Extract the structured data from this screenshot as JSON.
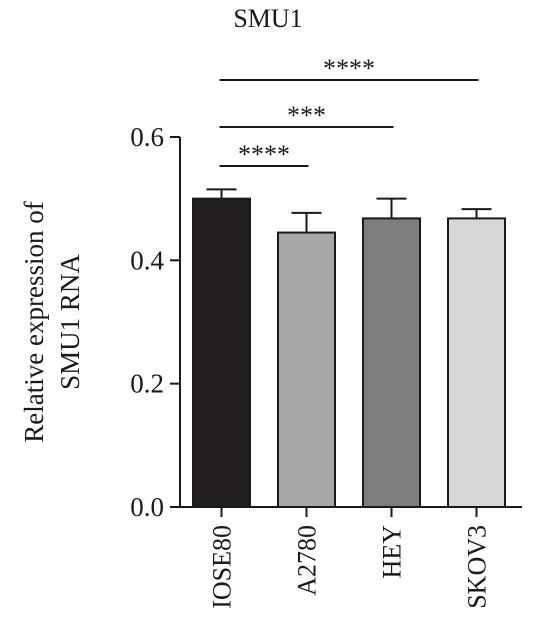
{
  "chart_data": {
    "type": "bar",
    "title": "SMU1",
    "ylabel": "Relative expression of SMU1 RNA",
    "ylabel_lines": [
      "Relative expression of",
      "SMU1 RNA"
    ],
    "xlabel": "",
    "categories": [
      "IOSE80",
      "A2780",
      "HEY",
      "SKOV3"
    ],
    "values": [
      0.5,
      0.445,
      0.468,
      0.468
    ],
    "errors": [
      0.015,
      0.032,
      0.032,
      0.015
    ],
    "colors": [
      "#231f20",
      "#a7a7aa",
      "#7d7e7c",
      "#d7d7d7"
    ],
    "ylim": [
      0,
      0.6
    ],
    "yticks": [
      0.0,
      0.2,
      0.4,
      0.6
    ],
    "ytick_labels": [
      "0.0",
      "0.2",
      "0.4",
      "0.6"
    ],
    "significance": [
      {
        "from": 0,
        "to": 3,
        "label": "****"
      },
      {
        "from": 0,
        "to": 2,
        "label": "***"
      },
      {
        "from": 0,
        "to": 1,
        "label": "****"
      }
    ]
  }
}
